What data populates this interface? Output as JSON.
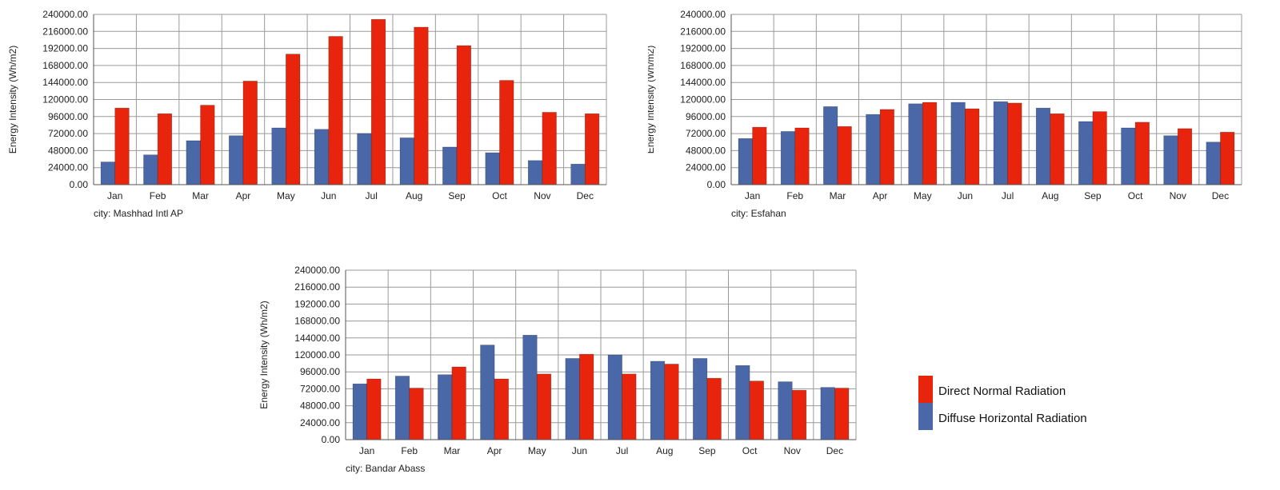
{
  "colors": {
    "diffuse": "#4a67a8",
    "direct": "#e8250c",
    "grid": "#9a9a9a",
    "axis": "#555555"
  },
  "legend": {
    "direct_label": "Direct Normal Radiation",
    "diffuse_label": "Diffuse Horizontal Radiation"
  },
  "chart_data": [
    {
      "type": "bar",
      "caption": "city: Mashhad Intl AP",
      "ylabel": "Energy Intensity (Wh/m2)",
      "ylim": [
        0,
        240000
      ],
      "yticks": [
        "0.00",
        "24000.00",
        "48000.00",
        "72000.00",
        "96000.00",
        "120000.00",
        "144000.00",
        "168000.00",
        "192000.00",
        "216000.00",
        "240000.00"
      ],
      "grid": true,
      "categories": [
        "Jan",
        "Feb",
        "Mar",
        "Apr",
        "May",
        "Jun",
        "Jul",
        "Aug",
        "Sep",
        "Oct",
        "Nov",
        "Dec"
      ],
      "series": [
        {
          "name": "Diffuse Horizontal Radiation",
          "values": [
            32000,
            42000,
            62000,
            69000,
            80000,
            78000,
            72000,
            66000,
            53000,
            45000,
            34000,
            29000
          ]
        },
        {
          "name": "Direct Normal Radiation",
          "values": [
            108000,
            100000,
            112000,
            146000,
            184000,
            209000,
            233000,
            222000,
            196000,
            147000,
            102000,
            100000
          ]
        }
      ]
    },
    {
      "type": "bar",
      "caption": "city: Esfahan",
      "ylabel": "Energy Intensity (Wh/m2)",
      "ylim": [
        0,
        240000
      ],
      "yticks": [
        "0.00",
        "24000.00",
        "48000.00",
        "72000.00",
        "96000.00",
        "120000.00",
        "144000.00",
        "168000.00",
        "192000.00",
        "216000.00",
        "240000.00"
      ],
      "grid": true,
      "categories": [
        "Jan",
        "Feb",
        "Mar",
        "Apr",
        "May",
        "Jun",
        "Jul",
        "Aug",
        "Sep",
        "Oct",
        "Nov",
        "Dec"
      ],
      "series": [
        {
          "name": "Diffuse Horizontal Radiation",
          "values": [
            65000,
            75000,
            110000,
            99000,
            114000,
            116000,
            117000,
            108000,
            89000,
            80000,
            69000,
            60000
          ]
        },
        {
          "name": "Direct Normal Radiation",
          "values": [
            81000,
            80000,
            82000,
            106000,
            116000,
            107000,
            115000,
            100000,
            103000,
            88000,
            79000,
            74000
          ]
        }
      ]
    },
    {
      "type": "bar",
      "caption": "city: Bandar Abass",
      "ylabel": "Energy Intensity (Wh/m2)",
      "ylim": [
        0,
        240000
      ],
      "yticks": [
        "0.00",
        "24000.00",
        "48000.00",
        "72000.00",
        "96000.00",
        "120000.00",
        "144000.00",
        "168000.00",
        "192000.00",
        "216000.00",
        "240000.00"
      ],
      "grid": true,
      "categories": [
        "Jan",
        "Feb",
        "Mar",
        "Apr",
        "May",
        "Jun",
        "Jul",
        "Aug",
        "Sep",
        "Oct",
        "Nov",
        "Dec"
      ],
      "series": [
        {
          "name": "Diffuse Horizontal Radiation",
          "values": [
            79000,
            90000,
            92000,
            134000,
            148000,
            115000,
            120000,
            111000,
            115000,
            105000,
            82000,
            74000
          ]
        },
        {
          "name": "Direct Normal Radiation",
          "values": [
            86000,
            73000,
            103000,
            86000,
            93000,
            121000,
            93000,
            107000,
            87000,
            83000,
            70000,
            73000
          ]
        }
      ]
    }
  ]
}
